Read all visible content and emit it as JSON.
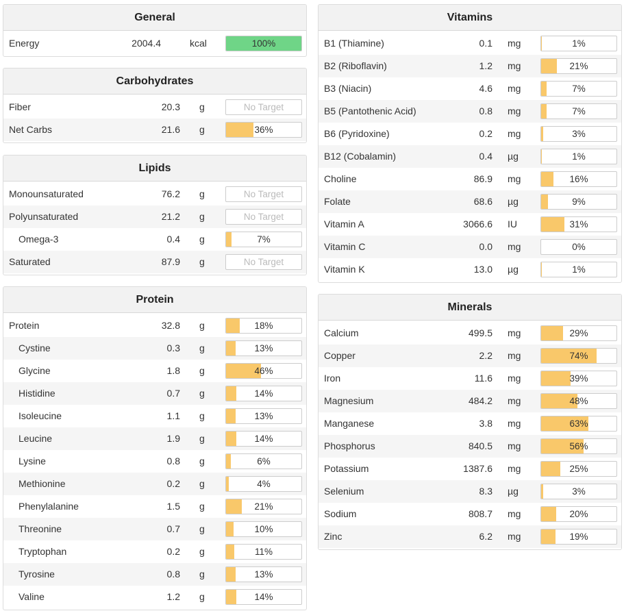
{
  "colors": {
    "fill": "#f9c86a",
    "full": "#6fd587"
  },
  "panels": [
    {
      "key": "general",
      "title": "General",
      "rows": [
        {
          "name": "Energy",
          "value": "2004.4",
          "unit": "kcal",
          "pct": 100,
          "label": "100%",
          "full": true
        }
      ]
    },
    {
      "key": "carbohydrates",
      "title": "Carbohydrates",
      "rows": [
        {
          "name": "Fiber",
          "value": "20.3",
          "unit": "g",
          "pct": null,
          "label": "No Target"
        },
        {
          "name": "Net Carbs",
          "value": "21.6",
          "unit": "g",
          "pct": 36,
          "label": "36%"
        }
      ]
    },
    {
      "key": "lipids",
      "title": "Lipids",
      "rows": [
        {
          "name": "Monounsaturated",
          "value": "76.2",
          "unit": "g",
          "pct": null,
          "label": "No Target"
        },
        {
          "name": "Polyunsaturated",
          "value": "21.2",
          "unit": "g",
          "pct": null,
          "label": "No Target"
        },
        {
          "name": "Omega-3",
          "value": "0.4",
          "unit": "g",
          "pct": 7,
          "label": "7%",
          "indent": true
        },
        {
          "name": "Saturated",
          "value": "87.9",
          "unit": "g",
          "pct": null,
          "label": "No Target"
        }
      ]
    },
    {
      "key": "protein",
      "title": "Protein",
      "rows": [
        {
          "name": "Protein",
          "value": "32.8",
          "unit": "g",
          "pct": 18,
          "label": "18%"
        },
        {
          "name": "Cystine",
          "value": "0.3",
          "unit": "g",
          "pct": 13,
          "label": "13%",
          "indent": true
        },
        {
          "name": "Glycine",
          "value": "1.8",
          "unit": "g",
          "pct": 46,
          "label": "46%",
          "indent": true
        },
        {
          "name": "Histidine",
          "value": "0.7",
          "unit": "g",
          "pct": 14,
          "label": "14%",
          "indent": true
        },
        {
          "name": "Isoleucine",
          "value": "1.1",
          "unit": "g",
          "pct": 13,
          "label": "13%",
          "indent": true
        },
        {
          "name": "Leucine",
          "value": "1.9",
          "unit": "g",
          "pct": 14,
          "label": "14%",
          "indent": true
        },
        {
          "name": "Lysine",
          "value": "0.8",
          "unit": "g",
          "pct": 6,
          "label": "6%",
          "indent": true
        },
        {
          "name": "Methionine",
          "value": "0.2",
          "unit": "g",
          "pct": 4,
          "label": "4%",
          "indent": true
        },
        {
          "name": "Phenylalanine",
          "value": "1.5",
          "unit": "g",
          "pct": 21,
          "label": "21%",
          "indent": true
        },
        {
          "name": "Threonine",
          "value": "0.7",
          "unit": "g",
          "pct": 10,
          "label": "10%",
          "indent": true
        },
        {
          "name": "Tryptophan",
          "value": "0.2",
          "unit": "g",
          "pct": 11,
          "label": "11%",
          "indent": true
        },
        {
          "name": "Tyrosine",
          "value": "0.8",
          "unit": "g",
          "pct": 13,
          "label": "13%",
          "indent": true
        },
        {
          "name": "Valine",
          "value": "1.2",
          "unit": "g",
          "pct": 14,
          "label": "14%",
          "indent": true
        }
      ]
    },
    {
      "key": "vitamins",
      "title": "Vitamins",
      "rows": [
        {
          "name": "B1 (Thiamine)",
          "value": "0.1",
          "unit": "mg",
          "pct": 1,
          "label": "1%"
        },
        {
          "name": "B2 (Riboflavin)",
          "value": "1.2",
          "unit": "mg",
          "pct": 21,
          "label": "21%"
        },
        {
          "name": "B3 (Niacin)",
          "value": "4.6",
          "unit": "mg",
          "pct": 7,
          "label": "7%"
        },
        {
          "name": "B5 (Pantothenic Acid)",
          "value": "0.8",
          "unit": "mg",
          "pct": 7,
          "label": "7%"
        },
        {
          "name": "B6 (Pyridoxine)",
          "value": "0.2",
          "unit": "mg",
          "pct": 3,
          "label": "3%"
        },
        {
          "name": "B12 (Cobalamin)",
          "value": "0.4",
          "unit": "µg",
          "pct": 1,
          "label": "1%"
        },
        {
          "name": "Choline",
          "value": "86.9",
          "unit": "mg",
          "pct": 16,
          "label": "16%"
        },
        {
          "name": "Folate",
          "value": "68.6",
          "unit": "µg",
          "pct": 9,
          "label": "9%"
        },
        {
          "name": "Vitamin A",
          "value": "3066.6",
          "unit": "IU",
          "pct": 31,
          "label": "31%"
        },
        {
          "name": "Vitamin C",
          "value": "0.0",
          "unit": "mg",
          "pct": 0,
          "label": "0%"
        },
        {
          "name": "Vitamin K",
          "value": "13.0",
          "unit": "µg",
          "pct": 1,
          "label": "1%"
        }
      ]
    },
    {
      "key": "minerals",
      "title": "Minerals",
      "rows": [
        {
          "name": "Calcium",
          "value": "499.5",
          "unit": "mg",
          "pct": 29,
          "label": "29%"
        },
        {
          "name": "Copper",
          "value": "2.2",
          "unit": "mg",
          "pct": 74,
          "label": "74%"
        },
        {
          "name": "Iron",
          "value": "11.6",
          "unit": "mg",
          "pct": 39,
          "label": "39%"
        },
        {
          "name": "Magnesium",
          "value": "484.2",
          "unit": "mg",
          "pct": 48,
          "label": "48%"
        },
        {
          "name": "Manganese",
          "value": "3.8",
          "unit": "mg",
          "pct": 63,
          "label": "63%"
        },
        {
          "name": "Phosphorus",
          "value": "840.5",
          "unit": "mg",
          "pct": 56,
          "label": "56%"
        },
        {
          "name": "Potassium",
          "value": "1387.6",
          "unit": "mg",
          "pct": 25,
          "label": "25%"
        },
        {
          "name": "Selenium",
          "value": "8.3",
          "unit": "µg",
          "pct": 3,
          "label": "3%"
        },
        {
          "name": "Sodium",
          "value": "808.7",
          "unit": "mg",
          "pct": 20,
          "label": "20%"
        },
        {
          "name": "Zinc",
          "value": "6.2",
          "unit": "mg",
          "pct": 19,
          "label": "19%"
        }
      ]
    }
  ]
}
